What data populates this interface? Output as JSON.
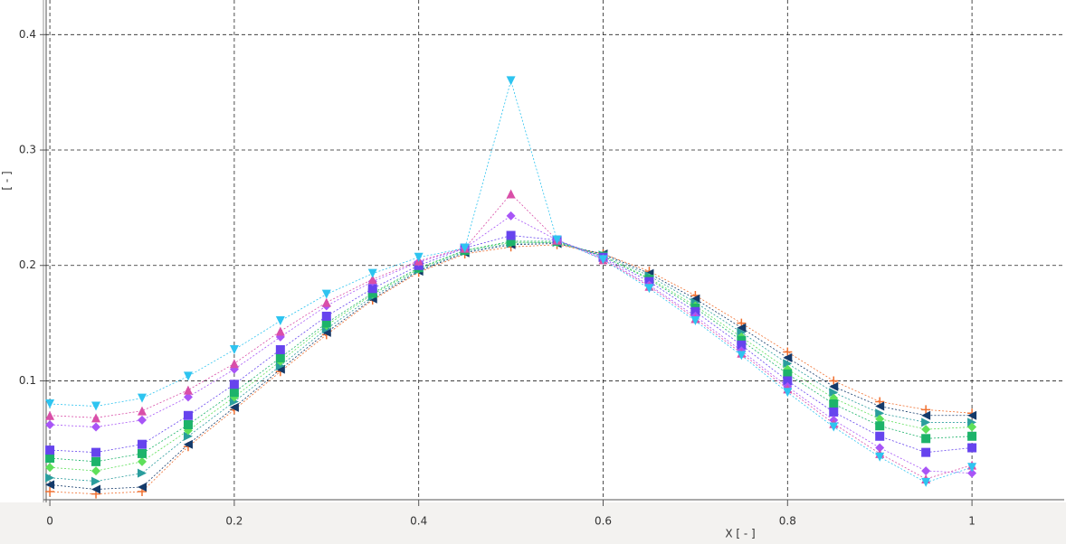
{
  "chart_data": {
    "type": "line",
    "xlabel": "X [ - ]",
    "ylabel": "[ - ]",
    "x": [
      0,
      0.05,
      0.1,
      0.15,
      0.2,
      0.25,
      0.3,
      0.35,
      0.4,
      0.45,
      0.5,
      0.55,
      0.6,
      0.65,
      0.7,
      0.75,
      0.8,
      0.85,
      0.9,
      0.95,
      1
    ],
    "series": [
      {
        "color": "#f07030",
        "marker": "plus",
        "values": [
          0.004,
          0.002,
          0.004,
          0.043,
          0.075,
          0.108,
          0.14,
          0.17,
          0.194,
          0.21,
          0.216,
          0.218,
          0.21,
          0.195,
          0.174,
          0.15,
          0.125,
          0.1,
          0.082,
          0.075,
          0.072
        ]
      },
      {
        "color": "#143a6a",
        "marker": "tri-left",
        "values": [
          0.01,
          0.006,
          0.008,
          0.045,
          0.077,
          0.11,
          0.142,
          0.171,
          0.195,
          0.211,
          0.218,
          0.219,
          0.21,
          0.193,
          0.171,
          0.146,
          0.12,
          0.095,
          0.078,
          0.07,
          0.07
        ]
      },
      {
        "color": "#2a9d9d",
        "marker": "tri-right",
        "values": [
          0.016,
          0.013,
          0.02,
          0.052,
          0.082,
          0.113,
          0.145,
          0.173,
          0.196,
          0.212,
          0.219,
          0.22,
          0.209,
          0.191,
          0.168,
          0.142,
          0.115,
          0.09,
          0.072,
          0.064,
          0.064
        ]
      },
      {
        "color": "#5ee05a",
        "marker": "diamond",
        "values": [
          0.025,
          0.022,
          0.03,
          0.057,
          0.086,
          0.117,
          0.148,
          0.175,
          0.197,
          0.213,
          0.22,
          0.22,
          0.208,
          0.189,
          0.165,
          0.138,
          0.11,
          0.085,
          0.067,
          0.058,
          0.06
        ]
      },
      {
        "color": "#1db36a",
        "marker": "square",
        "values": [
          0.033,
          0.03,
          0.037,
          0.062,
          0.09,
          0.12,
          0.15,
          0.176,
          0.198,
          0.213,
          0.221,
          0.221,
          0.208,
          0.188,
          0.163,
          0.135,
          0.106,
          0.08,
          0.061,
          0.05,
          0.052
        ]
      },
      {
        "color": "#6644ee",
        "marker": "square",
        "values": [
          0.04,
          0.038,
          0.045,
          0.07,
          0.097,
          0.127,
          0.156,
          0.18,
          0.2,
          0.215,
          0.226,
          0.222,
          0.207,
          0.186,
          0.16,
          0.131,
          0.1,
          0.073,
          0.052,
          0.038,
          0.042
        ]
      },
      {
        "color": "#a855f7",
        "marker": "diamond",
        "values": [
          0.062,
          0.06,
          0.066,
          0.086,
          0.11,
          0.138,
          0.165,
          0.186,
          0.203,
          0.215,
          0.243,
          0.222,
          0.206,
          0.183,
          0.156,
          0.126,
          0.095,
          0.066,
          0.042,
          0.022,
          0.02
        ]
      },
      {
        "color": "#d94fa8",
        "marker": "tri-up",
        "values": [
          0.07,
          0.068,
          0.074,
          0.092,
          0.115,
          0.143,
          0.168,
          0.188,
          0.204,
          0.215,
          0.262,
          0.222,
          0.205,
          0.182,
          0.154,
          0.124,
          0.093,
          0.063,
          0.037,
          0.015,
          0.027
        ]
      },
      {
        "color": "#2ec4f0",
        "marker": "tri-down",
        "values": [
          0.08,
          0.078,
          0.085,
          0.104,
          0.127,
          0.152,
          0.175,
          0.193,
          0.207,
          0.215,
          0.36,
          0.222,
          0.205,
          0.18,
          0.152,
          0.122,
          0.09,
          0.06,
          0.034,
          0.012,
          0.025
        ]
      }
    ],
    "xlim": [
      -0.005,
      1.1
    ],
    "ylim": [
      -0.003,
      0.43
    ],
    "xticks": [
      0,
      0.2,
      0.4,
      0.6,
      0.8,
      1
    ],
    "yticks": [
      0.1,
      0.2,
      0.3,
      0.4
    ],
    "grid": true
  }
}
